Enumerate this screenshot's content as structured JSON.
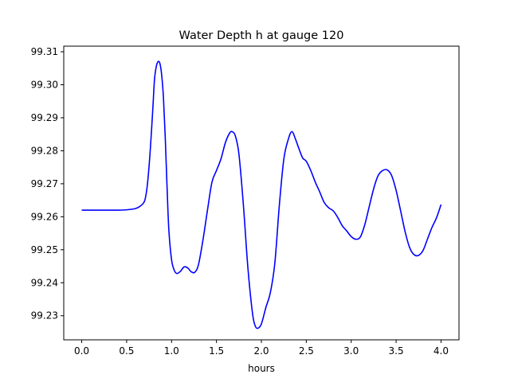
{
  "chart_data": {
    "type": "line",
    "title": "Water Depth h at gauge 120",
    "xlabel": "hours",
    "ylabel": "",
    "xlim": [
      -0.2,
      4.2
    ],
    "ylim": [
      99.2227,
      99.3117
    ],
    "xticks": [
      "0.0",
      "0.5",
      "1.0",
      "1.5",
      "2.0",
      "2.5",
      "3.0",
      "3.5",
      "4.0"
    ],
    "yticks": [
      "99.23",
      "99.24",
      "99.25",
      "99.26",
      "99.27",
      "99.28",
      "99.29",
      "99.30",
      "99.31"
    ],
    "grid": false,
    "line_color": "#0000ff",
    "series": [
      {
        "name": "",
        "x": [
          0.0,
          0.1,
          0.2,
          0.3,
          0.4,
          0.5,
          0.6,
          0.65,
          0.7,
          0.73,
          0.76,
          0.79,
          0.81,
          0.83,
          0.85,
          0.87,
          0.89,
          0.91,
          0.93,
          0.95,
          0.97,
          1.0,
          1.03,
          1.06,
          1.1,
          1.14,
          1.18,
          1.22,
          1.26,
          1.3,
          1.35,
          1.4,
          1.45,
          1.5,
          1.55,
          1.6,
          1.65,
          1.68,
          1.71,
          1.75,
          1.8,
          1.85,
          1.9,
          1.93,
          1.96,
          2.0,
          2.05,
          2.1,
          2.15,
          2.2,
          2.25,
          2.3,
          2.34,
          2.38,
          2.42,
          2.46,
          2.5,
          2.55,
          2.6,
          2.65,
          2.7,
          2.75,
          2.8,
          2.85,
          2.9,
          2.95,
          3.0,
          3.05,
          3.1,
          3.15,
          3.2,
          3.25,
          3.3,
          3.35,
          3.4,
          3.45,
          3.5,
          3.55,
          3.6,
          3.65,
          3.7,
          3.75,
          3.8,
          3.85,
          3.9,
          3.95,
          4.0
        ],
        "y": [
          99.262,
          99.262,
          99.262,
          99.262,
          99.262,
          99.2621,
          99.2625,
          99.2632,
          99.2648,
          99.2695,
          99.279,
          99.292,
          99.3015,
          99.3055,
          99.307,
          99.3065,
          99.303,
          99.296,
          99.284,
          99.269,
          99.256,
          99.247,
          99.2438,
          99.2428,
          99.2435,
          99.2448,
          99.2445,
          99.2433,
          99.2432,
          99.2455,
          99.253,
          99.262,
          99.2705,
          99.274,
          99.2775,
          99.2825,
          99.2855,
          99.2857,
          99.2845,
          99.279,
          99.2635,
          99.2445,
          99.231,
          99.227,
          99.2262,
          99.2275,
          99.2325,
          99.237,
          99.246,
          99.2635,
          99.2775,
          99.2835,
          99.2858,
          99.2835,
          99.2805,
          99.2778,
          99.2768,
          99.274,
          99.2705,
          99.2675,
          99.2643,
          99.2627,
          99.2618,
          99.2598,
          99.2573,
          99.2557,
          99.254,
          99.2532,
          99.2538,
          99.2575,
          99.263,
          99.2685,
          99.2725,
          99.274,
          99.2742,
          99.2725,
          99.268,
          99.2618,
          99.2555,
          99.2507,
          99.2485,
          99.2483,
          99.2498,
          99.2533,
          99.2568,
          99.2597,
          99.2637
        ]
      }
    ]
  }
}
